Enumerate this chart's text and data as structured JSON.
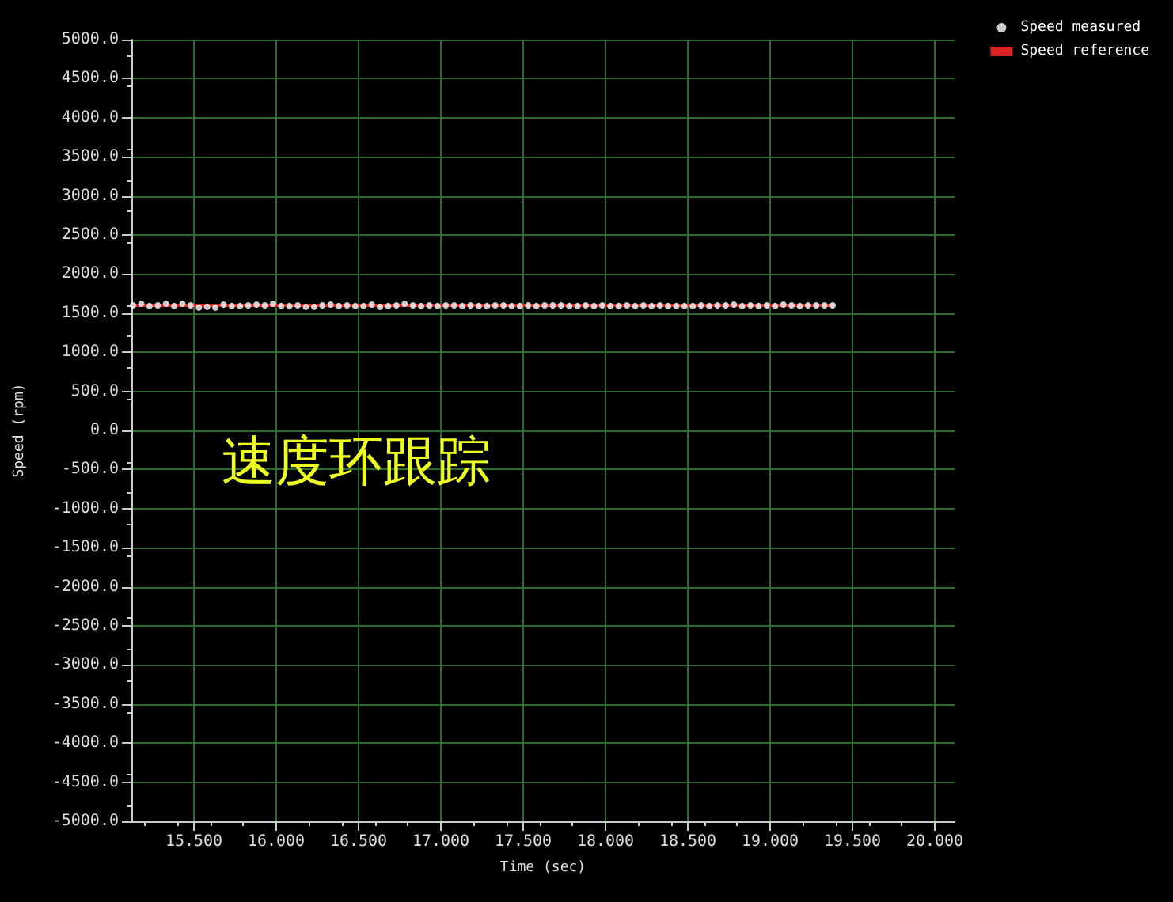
{
  "chart_data": {
    "type": "line",
    "xlabel": "Time (sec)",
    "ylabel": "Speed (rpm)",
    "annotations": [
      "速度环跟踪"
    ],
    "x": [
      15.13,
      15.18,
      15.23,
      15.28,
      15.33,
      15.38,
      15.43,
      15.48,
      15.53,
      15.58,
      15.63,
      15.68,
      15.73,
      15.78,
      15.83,
      15.88,
      15.93,
      15.98,
      16.03,
      16.08,
      16.13,
      16.18,
      16.23,
      16.28,
      16.33,
      16.38,
      16.43,
      16.48,
      16.53,
      16.58,
      16.63,
      16.68,
      16.73,
      16.78,
      16.83,
      16.88,
      16.93,
      16.98,
      17.03,
      17.08,
      17.13,
      17.18,
      17.23,
      17.28,
      17.33,
      17.38,
      17.43,
      17.48,
      17.53,
      17.58,
      17.63,
      17.68,
      17.73,
      17.78,
      17.83,
      17.88,
      17.93,
      17.98,
      18.03,
      18.08,
      18.13,
      18.18,
      18.23,
      18.28,
      18.33,
      18.38,
      18.43,
      18.48,
      18.53,
      18.58,
      18.63,
      18.68,
      18.73,
      18.78,
      18.83,
      18.88,
      18.93,
      18.98,
      19.03,
      19.08,
      19.13,
      19.18,
      19.23,
      19.28,
      19.33,
      19.38
    ],
    "series": [
      {
        "name": "Speed measured",
        "type": "scatter",
        "color": "#ffffff",
        "values": [
          1600,
          1620,
          1590,
          1600,
          1620,
          1590,
          1620,
          1600,
          1570,
          1580,
          1570,
          1610,
          1590,
          1590,
          1600,
          1610,
          1600,
          1620,
          1590,
          1590,
          1600,
          1580,
          1580,
          1600,
          1610,
          1590,
          1600,
          1590,
          1590,
          1610,
          1580,
          1590,
          1600,
          1620,
          1600,
          1590,
          1600,
          1590,
          1600,
          1600,
          1590,
          1600,
          1590,
          1590,
          1600,
          1600,
          1590,
          1590,
          1600,
          1590,
          1600,
          1600,
          1600,
          1590,
          1590,
          1600,
          1590,
          1600,
          1590,
          1590,
          1600,
          1590,
          1600,
          1590,
          1600,
          1590,
          1590,
          1590,
          1590,
          1600,
          1590,
          1600,
          1600,
          1610,
          1590,
          1600,
          1590,
          1600,
          1590,
          1610,
          1600,
          1590,
          1600,
          1600,
          1600,
          1600
        ]
      },
      {
        "name": "Speed reference",
        "color": "#dd2222",
        "marker": "none",
        "values": [
          1600,
          1600,
          1600,
          1600,
          1600,
          1600,
          1600,
          1600,
          1600,
          1600,
          1600,
          1600,
          1600,
          1600,
          1600,
          1600,
          1600,
          1600,
          1600,
          1600,
          1600,
          1600,
          1600,
          1600,
          1600,
          1600,
          1600,
          1600,
          1600,
          1600,
          1600,
          1600,
          1600,
          1600,
          1600,
          1600,
          1600,
          1600,
          1600,
          1600,
          1600,
          1600,
          1600,
          1600,
          1600,
          1600,
          1600,
          1600,
          1600,
          1600,
          1600,
          1600,
          1600,
          1600,
          1600,
          1600,
          1600,
          1600,
          1600,
          1600,
          1600,
          1600,
          1600,
          1600,
          1600,
          1600,
          1600,
          1600,
          1600,
          1600,
          1600,
          1600,
          1600,
          1600,
          1600,
          1600,
          1600,
          1600,
          1600,
          1600,
          1600,
          1600,
          1600,
          1600,
          1600,
          1600
        ]
      }
    ],
    "xlim": [
      15.12,
      20.12
    ],
    "xticks": [
      {
        "value": 15.5,
        "label": "15.500"
      },
      {
        "value": 16,
        "label": "16.000"
      },
      {
        "value": 16.5,
        "label": "16.500"
      },
      {
        "value": 17,
        "label": "17.000"
      },
      {
        "value": 17.5,
        "label": "17.500"
      },
      {
        "value": 18,
        "label": "18.000"
      },
      {
        "value": 18.5,
        "label": "18.500"
      },
      {
        "value": 19,
        "label": "19.000"
      },
      {
        "value": 19.5,
        "label": "19.500"
      },
      {
        "value": 20,
        "label": "20.000"
      }
    ],
    "ylim": [
      -5000,
      5000
    ],
    "yticks": [
      {
        "value": -5000,
        "label": "-5000.0"
      },
      {
        "value": -4500,
        "label": "-4500.0"
      },
      {
        "value": -4000,
        "label": "-4000.0"
      },
      {
        "value": -3500,
        "label": "-3500.0"
      },
      {
        "value": -3000,
        "label": "-3000.0"
      },
      {
        "value": -2500,
        "label": "-2500.0"
      },
      {
        "value": -2000,
        "label": "-2000.0"
      },
      {
        "value": -1500,
        "label": "-1500.0"
      },
      {
        "value": -1000,
        "label": "-1000.0"
      },
      {
        "value": -500,
        "label": "-500.0"
      },
      {
        "value": 0,
        "label": "0.0"
      },
      {
        "value": 500,
        "label": "500.0"
      },
      {
        "value": 1000,
        "label": "1000.0"
      },
      {
        "value": 1500,
        "label": "1500.0"
      },
      {
        "value": 2000,
        "label": "2000.0"
      },
      {
        "value": 2500,
        "label": "2500.0"
      },
      {
        "value": 3000,
        "label": "3000.0"
      },
      {
        "value": 3500,
        "label": "3500.0"
      },
      {
        "value": 4000,
        "label": "4000.0"
      },
      {
        "value": 4500,
        "label": "4500.0"
      },
      {
        "value": 5000,
        "label": "5000.0"
      }
    ],
    "grid": true,
    "legend": "top right",
    "marker": "circle",
    "line_style": "solid"
  }
}
